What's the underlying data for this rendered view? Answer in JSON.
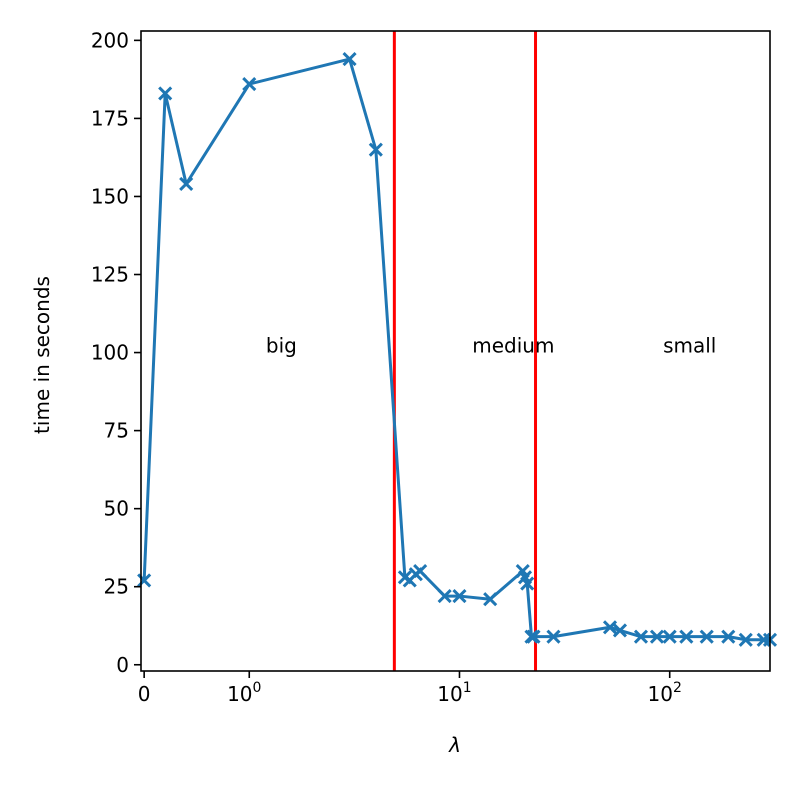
{
  "chart_data": {
    "type": "line",
    "title": "",
    "xlabel": "λ",
    "ylabel": "time in seconds",
    "x_scale": "symlog",
    "xlim": [
      -0.03,
      300
    ],
    "ylim": [
      -2,
      203
    ],
    "x_ticks": [
      {
        "value": 0,
        "label": "0",
        "exp": ""
      },
      {
        "value": 1,
        "label": "10",
        "exp": "0"
      },
      {
        "value": 10,
        "label": "10",
        "exp": "1"
      },
      {
        "value": 100,
        "label": "10",
        "exp": "2"
      }
    ],
    "y_ticks": [
      0,
      25,
      50,
      75,
      100,
      125,
      150,
      175,
      200
    ],
    "grid": false,
    "series": [
      {
        "color": "#1f77b4",
        "marker": "x",
        "x": [
          0,
          0.2,
          0.4,
          1.0,
          3.0,
          4.0,
          5.5,
          5.8,
          6.2,
          6.5,
          8.5,
          10.0,
          14.0,
          20.0,
          20.5,
          21.0,
          22.0,
          22.5,
          28.0,
          52.0,
          58.0,
          73.0,
          87.0,
          100.0,
          120.0,
          150.0,
          190.0,
          230.0,
          280.0,
          300.0
        ],
        "y": [
          27,
          183,
          154,
          186,
          194,
          165,
          28,
          27,
          29,
          30,
          22,
          22,
          21,
          30,
          28,
          26,
          9,
          9,
          9,
          12,
          11,
          9,
          9,
          9,
          9,
          9,
          9,
          8,
          8,
          8
        ]
      }
    ],
    "vlines": [
      {
        "x": 4.9,
        "color": "#ff0000"
      },
      {
        "x": 23.0,
        "color": "#ff0000"
      }
    ],
    "annotations": [
      {
        "text": "big",
        "x": 1.2,
        "y": 100
      },
      {
        "text": "medium",
        "x": 11.5,
        "y": 100
      },
      {
        "text": "small",
        "x": 93,
        "y": 100
      }
    ]
  }
}
